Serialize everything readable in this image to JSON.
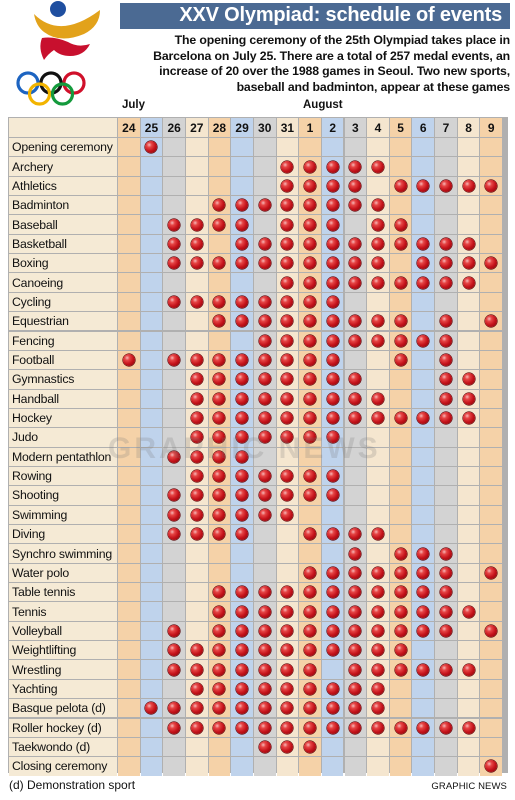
{
  "header": {
    "title": "XXV Olympiad: schedule of events",
    "intro": "The opening ceremony of the 25th Olympiad takes place in Barcelona on July 25. There are a total of 257 medal events, an increase of 20 over the 1988 games in Seoul. Two new sports, baseball and badminton, appear at these games"
  },
  "months": {
    "july": "July",
    "august": "August"
  },
  "days": [
    "24",
    "25",
    "26",
    "27",
    "28",
    "29",
    "30",
    "31",
    "1",
    "2",
    "3",
    "4",
    "5",
    "6",
    "7",
    "8",
    "9"
  ],
  "column_colors": [
    "#f5d2a8",
    "#bfd3ec",
    "#d3d3d3",
    "#f5e6cf",
    "#f5d2a8",
    "#bfd3ec",
    "#d3d3d3",
    "#f5e6cf",
    "#f5d2a8",
    "#bfd3ec",
    "#d3d3d3",
    "#f5e6cf",
    "#f5d2a8",
    "#bfd3ec",
    "#d3d3d3",
    "#f5e6cf",
    "#f5d2a8"
  ],
  "events": [
    {
      "name": "Opening ceremony",
      "days": [
        "25"
      ]
    },
    {
      "name": "Archery",
      "days": [
        "31",
        "1",
        "2",
        "3",
        "4"
      ]
    },
    {
      "name": "Athletics",
      "days": [
        "31",
        "1",
        "2",
        "3",
        "5",
        "6",
        "7",
        "8",
        "9"
      ]
    },
    {
      "name": "Badminton",
      "days": [
        "28",
        "29",
        "30",
        "31",
        "1",
        "2",
        "3",
        "4"
      ]
    },
    {
      "name": "Baseball",
      "days": [
        "26",
        "27",
        "28",
        "29",
        "31",
        "1",
        "2",
        "4",
        "5"
      ]
    },
    {
      "name": "Basketball",
      "days": [
        "26",
        "27",
        "29",
        "30",
        "31",
        "1",
        "2",
        "3",
        "4",
        "5",
        "6",
        "7",
        "8"
      ]
    },
    {
      "name": "Boxing",
      "days": [
        "26",
        "27",
        "28",
        "29",
        "30",
        "31",
        "1",
        "2",
        "3",
        "4",
        "6",
        "7",
        "8",
        "9"
      ]
    },
    {
      "name": "Canoeing",
      "days": [
        "31",
        "1",
        "2",
        "3",
        "4",
        "5",
        "6",
        "7",
        "8"
      ]
    },
    {
      "name": "Cycling",
      "days": [
        "26",
        "27",
        "28",
        "29",
        "30",
        "31",
        "1",
        "2"
      ]
    },
    {
      "name": "Equestrian",
      "days": [
        "28",
        "29",
        "30",
        "31",
        "1",
        "2",
        "3",
        "4",
        "5",
        "7",
        "9"
      ]
    },
    {
      "name": "Fencing",
      "days": [
        "30",
        "31",
        "1",
        "2",
        "3",
        "4",
        "5",
        "6",
        "7"
      ]
    },
    {
      "name": "Football",
      "days": [
        "24",
        "26",
        "27",
        "28",
        "29",
        "30",
        "31",
        "1",
        "2",
        "5",
        "7"
      ]
    },
    {
      "name": "Gymnastics",
      "days": [
        "27",
        "28",
        "29",
        "30",
        "31",
        "1",
        "2",
        "3",
        "7",
        "8"
      ]
    },
    {
      "name": "Handball",
      "days": [
        "27",
        "28",
        "29",
        "30",
        "31",
        "1",
        "2",
        "3",
        "4",
        "7",
        "8"
      ]
    },
    {
      "name": "Hockey",
      "days": [
        "27",
        "28",
        "29",
        "30",
        "31",
        "1",
        "2",
        "3",
        "4",
        "5",
        "6",
        "7",
        "8"
      ]
    },
    {
      "name": "Judo",
      "days": [
        "27",
        "28",
        "29",
        "30",
        "31",
        "1",
        "2"
      ]
    },
    {
      "name": "Modern pentathlon",
      "days": [
        "26",
        "27",
        "28",
        "29"
      ]
    },
    {
      "name": "Rowing",
      "days": [
        "27",
        "28",
        "29",
        "30",
        "31",
        "1",
        "2"
      ]
    },
    {
      "name": "Shooting",
      "days": [
        "26",
        "27",
        "28",
        "29",
        "30",
        "31",
        "1",
        "2"
      ]
    },
    {
      "name": "Swimming",
      "days": [
        "26",
        "27",
        "28",
        "29",
        "30",
        "31"
      ]
    },
    {
      "name": "Diving",
      "days": [
        "26",
        "27",
        "28",
        "29",
        "1",
        "2",
        "3",
        "4"
      ]
    },
    {
      "name": "Synchro swimming",
      "days": [
        "3",
        "5",
        "6",
        "7"
      ]
    },
    {
      "name": "Water polo",
      "days": [
        "1",
        "2",
        "3",
        "4",
        "5",
        "6",
        "7",
        "9"
      ]
    },
    {
      "name": "Table tennis",
      "days": [
        "28",
        "29",
        "30",
        "31",
        "1",
        "2",
        "3",
        "4",
        "5",
        "6",
        "7"
      ]
    },
    {
      "name": "Tennis",
      "days": [
        "28",
        "29",
        "30",
        "31",
        "1",
        "2",
        "3",
        "4",
        "5",
        "6",
        "7",
        "8"
      ]
    },
    {
      "name": "Volleyball",
      "days": [
        "26",
        "28",
        "29",
        "30",
        "31",
        "1",
        "2",
        "3",
        "4",
        "5",
        "6",
        "7",
        "9"
      ]
    },
    {
      "name": "Weightlifting",
      "days": [
        "26",
        "27",
        "28",
        "29",
        "30",
        "31",
        "1",
        "2",
        "3",
        "4",
        "5"
      ]
    },
    {
      "name": "Wrestling",
      "days": [
        "26",
        "27",
        "28",
        "29",
        "30",
        "31",
        "1",
        "3",
        "4",
        "5",
        "6",
        "7",
        "8"
      ]
    },
    {
      "name": "Yachting",
      "days": [
        "27",
        "28",
        "29",
        "30",
        "31",
        "1",
        "2",
        "3",
        "4"
      ]
    },
    {
      "name": "Basque pelota (d)",
      "days": [
        "25",
        "26",
        "27",
        "28",
        "29",
        "30",
        "31",
        "1",
        "2",
        "3",
        "4"
      ]
    },
    {
      "name": "Roller hockey (d)",
      "days": [
        "26",
        "27",
        "28",
        "29",
        "30",
        "31",
        "1",
        "2",
        "3",
        "4",
        "5",
        "6",
        "7",
        "8"
      ]
    },
    {
      "name": "Taekwondo (d)",
      "days": [
        "30",
        "31",
        "1"
      ]
    },
    {
      "name": "Closing ceremony",
      "days": [
        "9"
      ]
    }
  ],
  "footer": {
    "note": "(d) Demonstration sport",
    "credit": "GRAPHIC NEWS"
  },
  "watermark": "GRAPHIC NEWS",
  "logo": {
    "name": "Barcelona 1992 logo with Olympic rings",
    "colors": [
      "#e2a21b",
      "#c8102e",
      "#1f4fa0"
    ]
  }
}
